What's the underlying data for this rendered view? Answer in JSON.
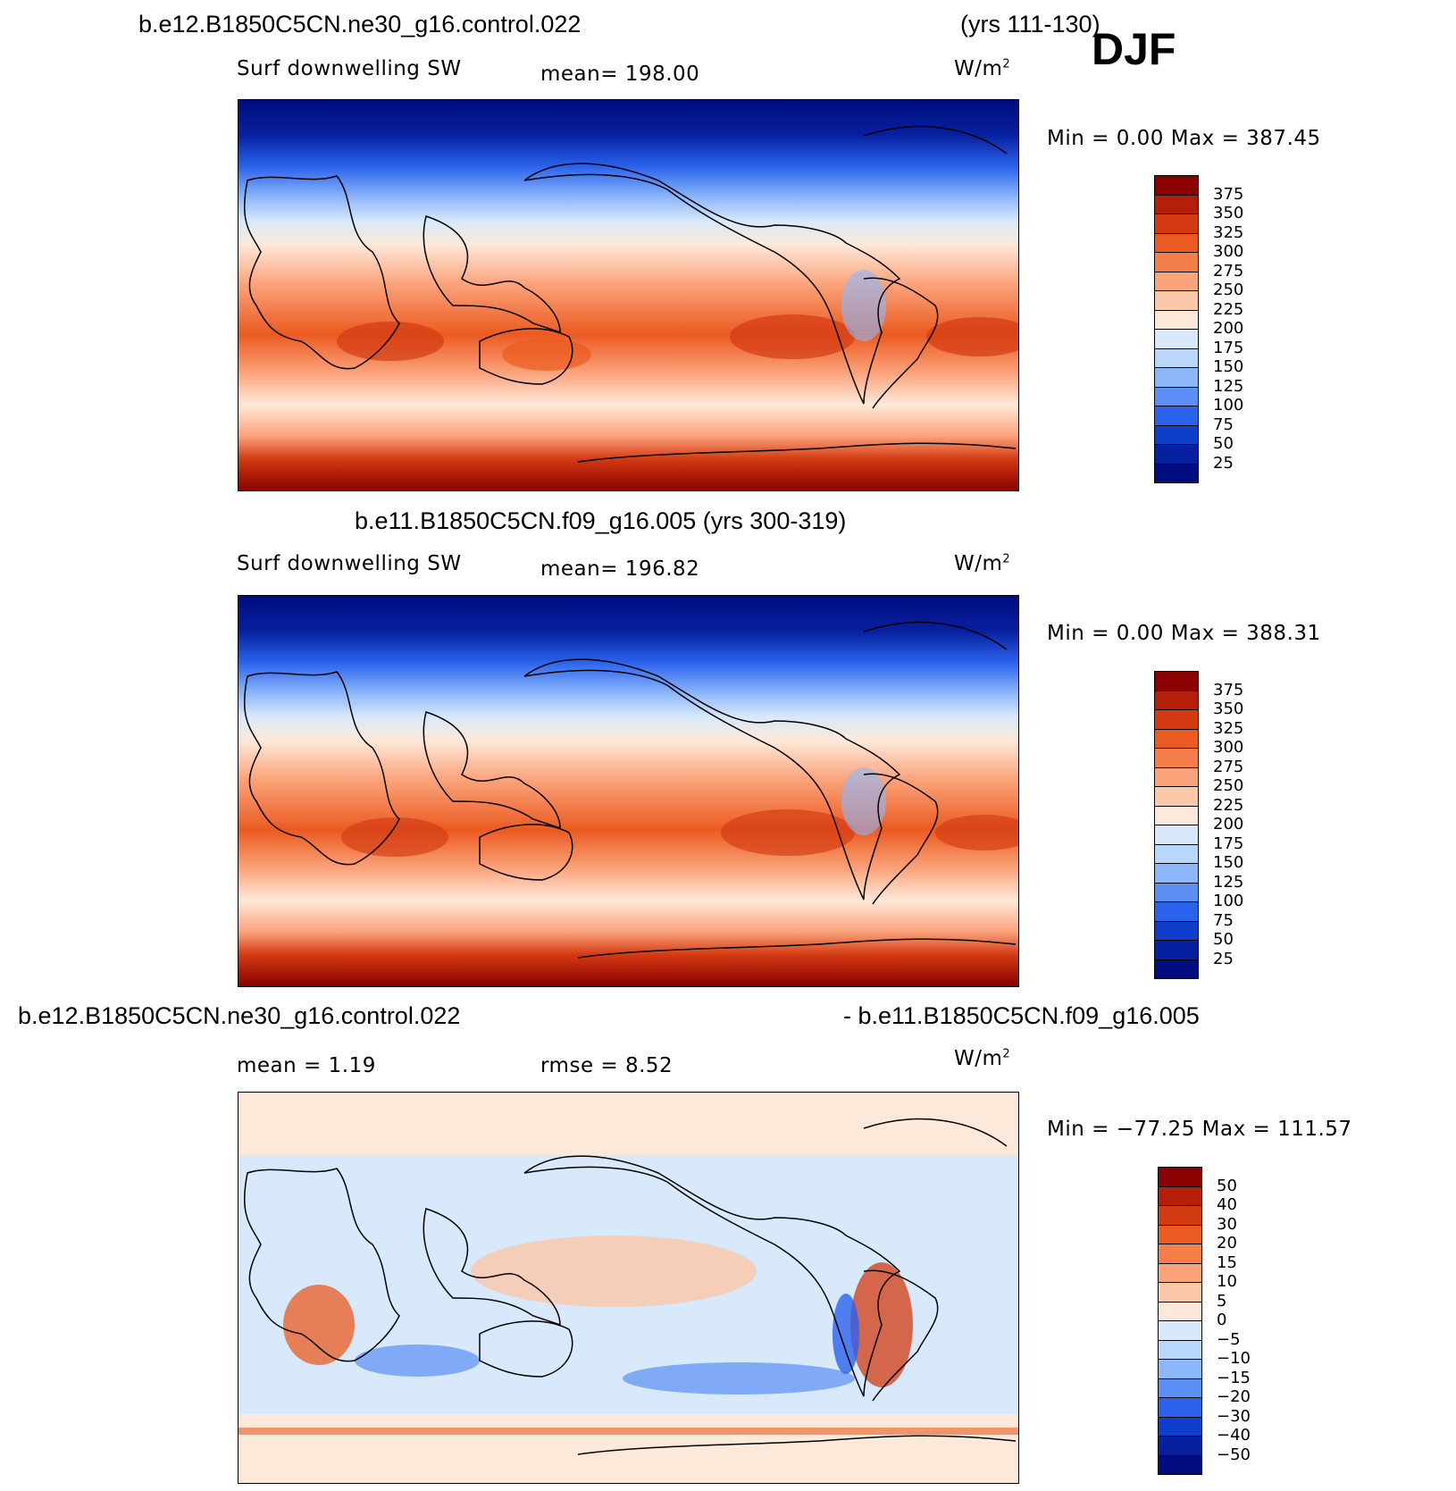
{
  "season": "DJF",
  "units": "W/m²",
  "panels": [
    {
      "title_left": "b.e12.B1850C5CN.ne30_g16.control.022",
      "title_right": "(yrs 111-130)",
      "variable": "Surf downwelling SW",
      "mean_text": "mean=  198.00",
      "minmax_text": "Min =     0.00  Max  =  387.45",
      "colorbar_labels": [
        "375",
        "350",
        "325",
        "300",
        "275",
        "250",
        "225",
        "200",
        "175",
        "150",
        "125",
        "100",
        "75",
        "50",
        "25"
      ],
      "colorbar_colors": [
        "#8b0000",
        "#b51f0a",
        "#d33a12",
        "#eb5a20",
        "#f57f4b",
        "#fba47c",
        "#fdc7aa",
        "#fde9d9",
        "#d8e9fb",
        "#b9d6fb",
        "#8db7fb",
        "#5b8ff4",
        "#2a62ec",
        "#0f3dcc",
        "#07209f",
        "#000c80"
      ]
    },
    {
      "title_left": "b.e11.B1850C5CN.f09_g16.005 (yrs 300-319)",
      "variable": "Surf downwelling SW",
      "mean_text": "mean=  196.82",
      "minmax_text": "Min =     0.00  Max  =  388.31",
      "colorbar_labels": [
        "375",
        "350",
        "325",
        "300",
        "275",
        "250",
        "225",
        "200",
        "175",
        "150",
        "125",
        "100",
        "75",
        "50",
        "25"
      ],
      "colorbar_colors": [
        "#8b0000",
        "#b51f0a",
        "#d33a12",
        "#eb5a20",
        "#f57f4b",
        "#fba47c",
        "#fdc7aa",
        "#fde9d9",
        "#d8e9fb",
        "#b9d6fb",
        "#8db7fb",
        "#5b8ff4",
        "#2a62ec",
        "#0f3dcc",
        "#07209f",
        "#000c80"
      ]
    },
    {
      "title_left": "b.e12.B1850C5CN.ne30_g16.control.022",
      "title_right": "- b.e11.B1850C5CN.f09_g16.005",
      "mean_text": "mean =     1.19",
      "rmse_text": "rmse =     8.52",
      "minmax_text": "Min = −77.25  Max  =  111.57",
      "colorbar_labels": [
        "50",
        "40",
        "30",
        "20",
        "15",
        "10",
        "5",
        "0",
        "−5",
        "−10",
        "−15",
        "−20",
        "−30",
        "−40",
        "−50"
      ],
      "colorbar_colors": [
        "#8b0000",
        "#b51f0a",
        "#d33a12",
        "#eb5a20",
        "#f57f4b",
        "#fba47c",
        "#fdc7aa",
        "#fde9d9",
        "#d8e9fb",
        "#b9d6fb",
        "#8db7fb",
        "#5b8ff4",
        "#2a62ec",
        "#0f3dcc",
        "#07209f",
        "#000c80"
      ]
    }
  ]
}
